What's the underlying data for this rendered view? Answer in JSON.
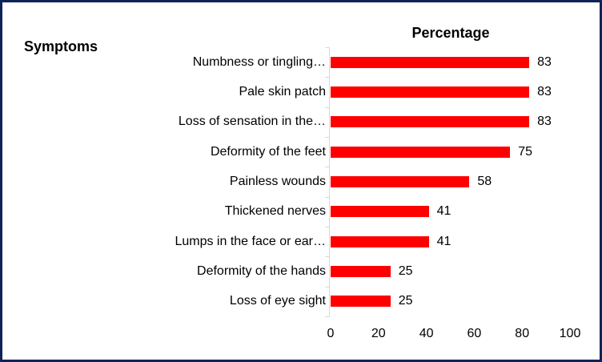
{
  "colors": {
    "frame_border": "#0E2357",
    "bar": "#FF0000",
    "axis_line": "#D9D9D9",
    "text": "#000000",
    "background": "#FFFFFF"
  },
  "category_axis_title": "Symptoms",
  "chart_data": {
    "type": "bar",
    "orientation": "horizontal",
    "title": "Percentage",
    "xlabel": "",
    "ylabel": "Symptoms",
    "categories": [
      "Numbness or tingling…",
      "Pale skin patch",
      "Loss of sensation in the…",
      "Deformity of the feet",
      "Painless wounds",
      "Thickened nerves",
      "Lumps in the face or ear…",
      "Deformity of the hands",
      "Loss of eye sight"
    ],
    "values": [
      83,
      83,
      83,
      75,
      58,
      41,
      41,
      25,
      25
    ],
    "data_labels_shown": true,
    "xlim": [
      0,
      100
    ],
    "x_ticks": [
      0,
      20,
      40,
      60,
      80,
      100
    ],
    "grid": false,
    "legend": "none"
  }
}
